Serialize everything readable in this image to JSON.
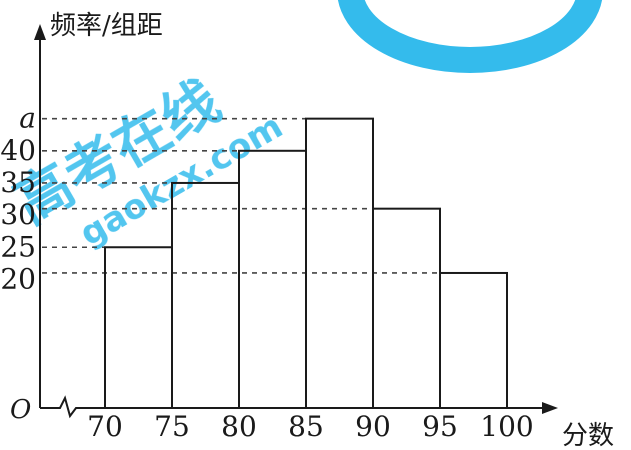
{
  "chart_data": {
    "type": "bar",
    "title": "",
    "ylabel": "频率/组距",
    "xlabel": "分数",
    "origin_label": "O",
    "x_ticks": [
      "70",
      "75",
      "80",
      "85",
      "90",
      "95",
      "100"
    ],
    "bins": [
      [
        70,
        75
      ],
      [
        75,
        80
      ],
      [
        80,
        85
      ],
      [
        85,
        90
      ],
      [
        90,
        95
      ],
      [
        95,
        100
      ]
    ],
    "values": [
      25,
      35,
      40,
      45,
      31,
      21
    ],
    "y_tick_values": [
      20,
      25,
      30,
      35,
      40,
      45
    ],
    "y_tick_labels": [
      "20",
      "25",
      "30",
      "35",
      "40",
      "a"
    ],
    "ylim": [
      0,
      51
    ],
    "grid": false,
    "reference_lines": "dashed"
  },
  "watermark": {
    "text_main": "高考在线",
    "text_url": "gaokzx.com",
    "color": "#1eb4ea"
  },
  "colors": {
    "ink": "#1a1a1a",
    "dash": "#444444"
  }
}
